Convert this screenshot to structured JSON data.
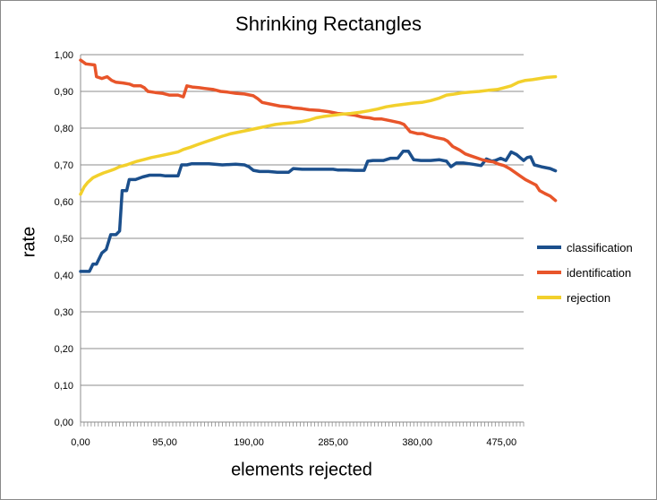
{
  "chart_data": {
    "type": "line",
    "title": "Shrinking Rectangles",
    "xlabel": "elements rejected",
    "ylabel": "rate",
    "xlim": [
      0,
      500
    ],
    "ylim": [
      0,
      1
    ],
    "y_ticks": [
      "0,00",
      "0,10",
      "0,20",
      "0,30",
      "0,40",
      "0,50",
      "0,60",
      "0,70",
      "0,80",
      "0,90",
      "1,00"
    ],
    "x_ticks": [
      {
        "value": 0,
        "label": "0,00"
      },
      {
        "value": 95,
        "label": "95,00"
      },
      {
        "value": 190,
        "label": "190,00"
      },
      {
        "value": 285,
        "label": "285,00"
      },
      {
        "value": 380,
        "label": "380,00"
      },
      {
        "value": 475,
        "label": "475,00"
      }
    ],
    "grid": "horizontal",
    "legend_position": "right",
    "series": [
      {
        "name": "classification",
        "color": "#1b4f8c",
        "points": [
          [
            0,
            0.41
          ],
          [
            10,
            0.41
          ],
          [
            14,
            0.43
          ],
          [
            18,
            0.43
          ],
          [
            24,
            0.46
          ],
          [
            29,
            0.47
          ],
          [
            34,
            0.51
          ],
          [
            40,
            0.51
          ],
          [
            44,
            0.52
          ],
          [
            47,
            0.63
          ],
          [
            52,
            0.63
          ],
          [
            55,
            0.66
          ],
          [
            62,
            0.66
          ],
          [
            70,
            0.667
          ],
          [
            78,
            0.672
          ],
          [
            90,
            0.672
          ],
          [
            96,
            0.67
          ],
          [
            110,
            0.67
          ],
          [
            114,
            0.7
          ],
          [
            120,
            0.7
          ],
          [
            125,
            0.703
          ],
          [
            145,
            0.703
          ],
          [
            160,
            0.7
          ],
          [
            175,
            0.702
          ],
          [
            185,
            0.7
          ],
          [
            190,
            0.695
          ],
          [
            195,
            0.685
          ],
          [
            202,
            0.682
          ],
          [
            212,
            0.682
          ],
          [
            222,
            0.68
          ],
          [
            235,
            0.68
          ],
          [
            240,
            0.69
          ],
          [
            250,
            0.688
          ],
          [
            268,
            0.688
          ],
          [
            285,
            0.688
          ],
          [
            290,
            0.686
          ],
          [
            300,
            0.686
          ],
          [
            310,
            0.685
          ],
          [
            320,
            0.685
          ],
          [
            324,
            0.71
          ],
          [
            330,
            0.712
          ],
          [
            342,
            0.712
          ],
          [
            350,
            0.718
          ],
          [
            358,
            0.718
          ],
          [
            364,
            0.737
          ],
          [
            370,
            0.737
          ],
          [
            376,
            0.714
          ],
          [
            384,
            0.712
          ],
          [
            395,
            0.712
          ],
          [
            405,
            0.714
          ],
          [
            413,
            0.71
          ],
          [
            418,
            0.695
          ],
          [
            424,
            0.705
          ],
          [
            432,
            0.705
          ],
          [
            442,
            0.702
          ],
          [
            452,
            0.698
          ],
          [
            458,
            0.716
          ],
          [
            464,
            0.71
          ],
          [
            468,
            0.712
          ],
          [
            474,
            0.718
          ],
          [
            480,
            0.712
          ],
          [
            486,
            0.735
          ],
          [
            492,
            0.728
          ],
          [
            496,
            0.72
          ],
          [
            500,
            0.712
          ],
          [
            504,
            0.72
          ],
          [
            508,
            0.722
          ],
          [
            512,
            0.7
          ],
          [
            520,
            0.695
          ],
          [
            530,
            0.69
          ],
          [
            536,
            0.684
          ]
        ]
      },
      {
        "name": "identification",
        "color": "#e8552a",
        "points": [
          [
            0,
            0.985
          ],
          [
            6,
            0.975
          ],
          [
            16,
            0.972
          ],
          [
            18,
            0.94
          ],
          [
            24,
            0.935
          ],
          [
            30,
            0.94
          ],
          [
            35,
            0.93
          ],
          [
            40,
            0.925
          ],
          [
            48,
            0.923
          ],
          [
            55,
            0.92
          ],
          [
            60,
            0.915
          ],
          [
            68,
            0.915
          ],
          [
            72,
            0.91
          ],
          [
            76,
            0.9
          ],
          [
            84,
            0.897
          ],
          [
            92,
            0.895
          ],
          [
            100,
            0.89
          ],
          [
            110,
            0.89
          ],
          [
            116,
            0.885
          ],
          [
            120,
            0.915
          ],
          [
            126,
            0.912
          ],
          [
            134,
            0.91
          ],
          [
            140,
            0.908
          ],
          [
            150,
            0.905
          ],
          [
            158,
            0.9
          ],
          [
            166,
            0.898
          ],
          [
            175,
            0.895
          ],
          [
            185,
            0.893
          ],
          [
            195,
            0.888
          ],
          [
            200,
            0.88
          ],
          [
            205,
            0.87
          ],
          [
            215,
            0.865
          ],
          [
            225,
            0.86
          ],
          [
            235,
            0.858
          ],
          [
            240,
            0.855
          ],
          [
            250,
            0.853
          ],
          [
            258,
            0.85
          ],
          [
            270,
            0.848
          ],
          [
            280,
            0.845
          ],
          [
            290,
            0.84
          ],
          [
            300,
            0.838
          ],
          [
            310,
            0.835
          ],
          [
            318,
            0.83
          ],
          [
            326,
            0.828
          ],
          [
            332,
            0.825
          ],
          [
            340,
            0.825
          ],
          [
            350,
            0.82
          ],
          [
            360,
            0.815
          ],
          [
            365,
            0.81
          ],
          [
            372,
            0.79
          ],
          [
            380,
            0.785
          ],
          [
            386,
            0.785
          ],
          [
            392,
            0.78
          ],
          [
            400,
            0.775
          ],
          [
            410,
            0.77
          ],
          [
            414,
            0.765
          ],
          [
            420,
            0.75
          ],
          [
            428,
            0.74
          ],
          [
            434,
            0.73
          ],
          [
            440,
            0.725
          ],
          [
            446,
            0.72
          ],
          [
            452,
            0.715
          ],
          [
            460,
            0.71
          ],
          [
            466,
            0.708
          ],
          [
            472,
            0.702
          ],
          [
            478,
            0.698
          ],
          [
            484,
            0.69
          ],
          [
            490,
            0.68
          ],
          [
            496,
            0.67
          ],
          [
            502,
            0.66
          ],
          [
            510,
            0.65
          ],
          [
            514,
            0.645
          ],
          [
            518,
            0.63
          ],
          [
            524,
            0.622
          ],
          [
            530,
            0.615
          ],
          [
            536,
            0.603
          ]
        ]
      },
      {
        "name": "rejection",
        "color": "#f2d02c",
        "points": [
          [
            0,
            0.62
          ],
          [
            4,
            0.64
          ],
          [
            8,
            0.652
          ],
          [
            14,
            0.665
          ],
          [
            20,
            0.672
          ],
          [
            26,
            0.678
          ],
          [
            32,
            0.683
          ],
          [
            38,
            0.688
          ],
          [
            44,
            0.695
          ],
          [
            52,
            0.7
          ],
          [
            58,
            0.705
          ],
          [
            64,
            0.71
          ],
          [
            72,
            0.715
          ],
          [
            80,
            0.72
          ],
          [
            90,
            0.725
          ],
          [
            100,
            0.73
          ],
          [
            110,
            0.735
          ],
          [
            116,
            0.742
          ],
          [
            124,
            0.748
          ],
          [
            132,
            0.755
          ],
          [
            140,
            0.762
          ],
          [
            150,
            0.77
          ],
          [
            160,
            0.778
          ],
          [
            170,
            0.785
          ],
          [
            180,
            0.79
          ],
          [
            190,
            0.795
          ],
          [
            200,
            0.8
          ],
          [
            210,
            0.805
          ],
          [
            220,
            0.81
          ],
          [
            230,
            0.813
          ],
          [
            240,
            0.815
          ],
          [
            250,
            0.818
          ],
          [
            258,
            0.822
          ],
          [
            266,
            0.828
          ],
          [
            275,
            0.832
          ],
          [
            285,
            0.835
          ],
          [
            295,
            0.838
          ],
          [
            305,
            0.84
          ],
          [
            315,
            0.843
          ],
          [
            325,
            0.847
          ],
          [
            335,
            0.852
          ],
          [
            345,
            0.858
          ],
          [
            355,
            0.862
          ],
          [
            365,
            0.865
          ],
          [
            375,
            0.868
          ],
          [
            385,
            0.87
          ],
          [
            395,
            0.875
          ],
          [
            405,
            0.882
          ],
          [
            413,
            0.89
          ],
          [
            420,
            0.892
          ],
          [
            430,
            0.896
          ],
          [
            440,
            0.898
          ],
          [
            450,
            0.9
          ],
          [
            460,
            0.903
          ],
          [
            470,
            0.905
          ],
          [
            478,
            0.91
          ],
          [
            486,
            0.915
          ],
          [
            494,
            0.925
          ],
          [
            502,
            0.93
          ],
          [
            510,
            0.932
          ],
          [
            518,
            0.935
          ],
          [
            526,
            0.938
          ],
          [
            536,
            0.94
          ]
        ]
      }
    ]
  }
}
